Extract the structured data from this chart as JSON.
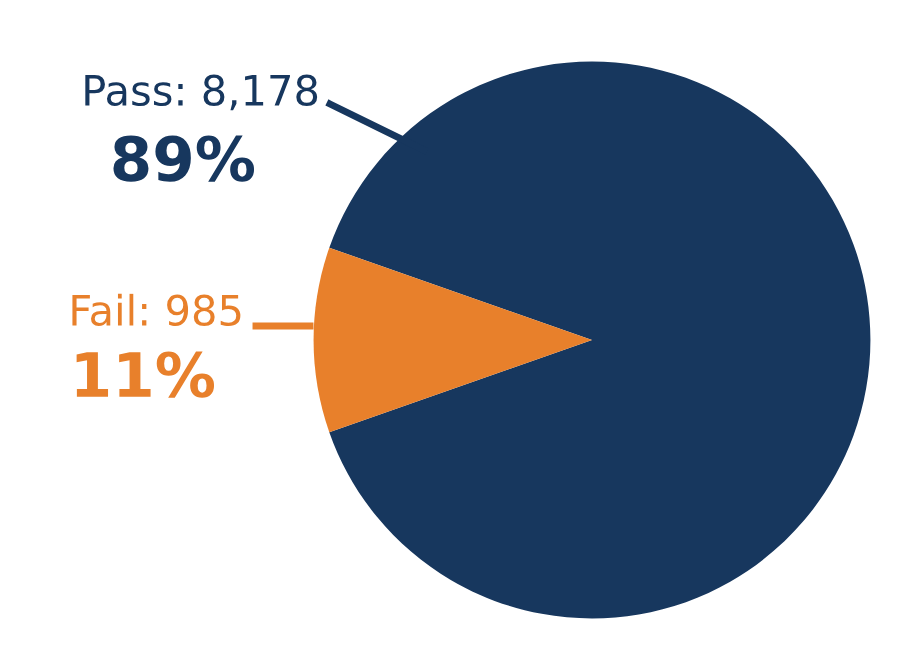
{
  "chart_data": {
    "type": "pie",
    "categories": [
      "Pass",
      "Fail"
    ],
    "values": [
      8178,
      985
    ],
    "colors": [
      "#17375e",
      "#e8802b"
    ],
    "value_labels": [
      "8,178",
      "985"
    ],
    "annotations": [
      "89%",
      "11%"
    ]
  }
}
